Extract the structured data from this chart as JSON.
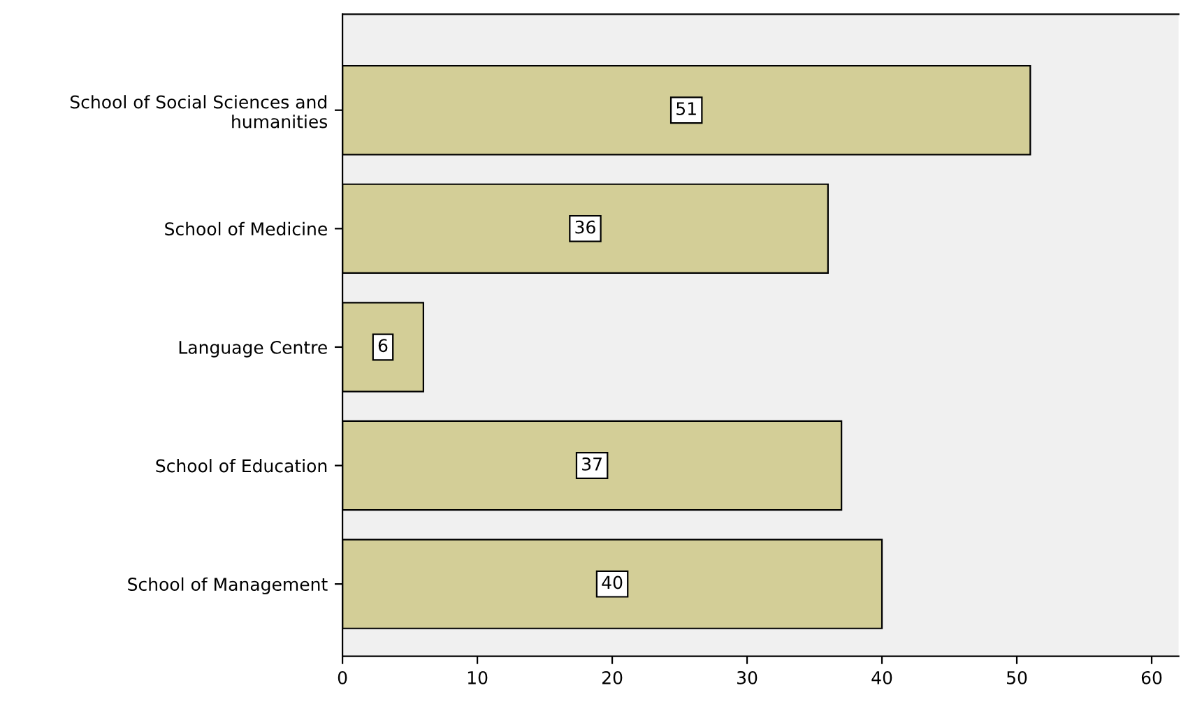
{
  "chart_data": {
    "type": "bar",
    "orientation": "horizontal",
    "categories": [
      "School of Social Sciences and\nhumanities",
      "School of Medicine",
      "Language Centre",
      "School of Education",
      "School of Management"
    ],
    "values": [
      51,
      36,
      6,
      37,
      40
    ],
    "color": "#d3ce97",
    "xlim": [
      0,
      62
    ],
    "xticks": [
      0,
      10,
      20,
      30,
      40,
      50,
      60
    ],
    "data_labels": true,
    "grid": false,
    "legend": false
  }
}
